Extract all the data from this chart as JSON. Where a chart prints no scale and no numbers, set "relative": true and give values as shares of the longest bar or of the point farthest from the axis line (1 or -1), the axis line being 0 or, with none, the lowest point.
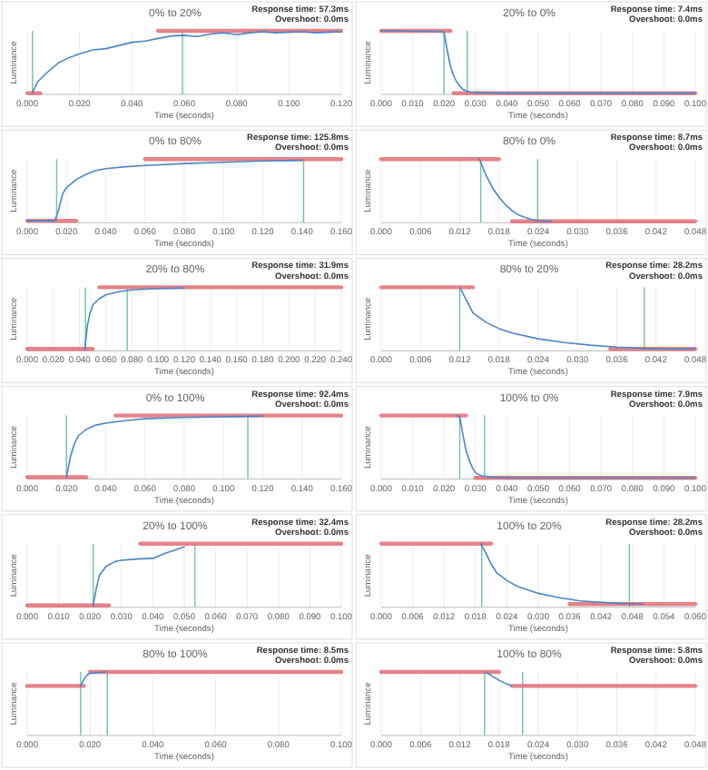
{
  "chart_data": [
    {
      "type": "line",
      "relative": true,
      "grid": "x",
      "title": "0% to 20%",
      "xlabel": "Time (seconds)",
      "ylabel": "Luminance",
      "annotations": [
        "Response time: 57.3ms",
        "Overshoot: 0.0ms"
      ],
      "xlim": [
        0,
        0.12
      ],
      "xticks": [
        {
          "value": 0,
          "label": "0.000"
        },
        {
          "value": 0.02,
          "label": "0.020"
        },
        {
          "value": 0.04,
          "label": "0.040"
        },
        {
          "value": 0.06,
          "label": "0.060"
        },
        {
          "value": 0.08,
          "label": "0.080"
        },
        {
          "value": 0.1,
          "label": "0.100"
        },
        {
          "value": 0.12,
          "label": "0.120"
        }
      ],
      "ref_lines": [
        {
          "axis": "x",
          "value": 0.002,
          "color": "#6cc4a4"
        },
        {
          "axis": "x",
          "value": 0.0593,
          "color": "#6cc4a4"
        }
      ],
      "series": [
        {
          "type": "line",
          "color": "#e06c75",
          "x": [
            0,
            0.005
          ],
          "values": [
            0.02,
            0.02
          ]
        },
        {
          "type": "line",
          "color": "#e06c75",
          "x": [
            0.05,
            0.12
          ],
          "values": [
            1,
            1
          ]
        },
        {
          "type": "line",
          "color": "#4a86c8",
          "x": [
            0.002,
            0.004,
            0.008,
            0.012,
            0.016,
            0.02,
            0.025,
            0.03,
            0.035,
            0.04,
            0.045,
            0.05,
            0.055,
            0.06,
            0.065,
            0.07,
            0.075,
            0.08,
            0.085,
            0.09,
            0.095,
            0.1,
            0.105,
            0.11,
            0.115,
            0.12
          ],
          "values": [
            0.03,
            0.2,
            0.36,
            0.5,
            0.58,
            0.64,
            0.7,
            0.72,
            0.77,
            0.82,
            0.84,
            0.88,
            0.92,
            0.93,
            0.91,
            0.95,
            0.97,
            0.94,
            0.97,
            0.99,
            0.97,
            0.98,
            0.99,
            0.97,
            0.98,
            0.99
          ]
        }
      ]
    },
    {
      "type": "line",
      "relative": true,
      "grid": "x",
      "title": "20% to 0%",
      "xlabel": "Time (seconds)",
      "ylabel": "Luminance",
      "annotations": [
        "Response time: 7.4ms",
        "Overshoot: 0.0ms"
      ],
      "xlim": [
        0,
        0.1
      ],
      "xticks": [
        {
          "value": 0,
          "label": "0.000"
        },
        {
          "value": 0.01,
          "label": "0.010"
        },
        {
          "value": 0.02,
          "label": "0.020"
        },
        {
          "value": 0.03,
          "label": "0.030"
        },
        {
          "value": 0.04,
          "label": "0.040"
        },
        {
          "value": 0.05,
          "label": "0.050"
        },
        {
          "value": 0.06,
          "label": "0.060"
        },
        {
          "value": 0.07,
          "label": "0.070"
        },
        {
          "value": 0.08,
          "label": "0.080"
        },
        {
          "value": 0.09,
          "label": "0.090"
        },
        {
          "value": 0.1,
          "label": "0.100"
        }
      ],
      "ref_lines": [
        {
          "axis": "x",
          "value": 0.02,
          "color": "#6cc4a4"
        },
        {
          "axis": "x",
          "value": 0.0274,
          "color": "#6cc4a4"
        }
      ],
      "series": [
        {
          "type": "line",
          "color": "#e06c75",
          "x": [
            0,
            0.022
          ],
          "values": [
            1,
            1
          ]
        },
        {
          "type": "line",
          "color": "#e06c75",
          "x": [
            0.023,
            0.1
          ],
          "values": [
            0.02,
            0.02
          ]
        },
        {
          "type": "line",
          "color": "#4a86c8",
          "x": [
            0,
            0.019,
            0.02,
            0.021,
            0.022,
            0.023,
            0.024,
            0.025,
            0.026,
            0.028,
            0.03,
            0.04,
            0.06,
            0.08,
            0.1
          ],
          "values": [
            1,
            0.99,
            0.98,
            0.7,
            0.45,
            0.3,
            0.2,
            0.13,
            0.08,
            0.04,
            0.03,
            0.02,
            0.02,
            0.02,
            0.02
          ]
        }
      ]
    },
    {
      "type": "line",
      "relative": true,
      "grid": "x",
      "title": "0% to 80%",
      "xlabel": "Time (seconds)",
      "ylabel": "Luminance",
      "annotations": [
        "Response time: 125.8ms",
        "Overshoot: 0.0ms"
      ],
      "xlim": [
        0,
        0.16
      ],
      "xticks": [
        {
          "value": 0,
          "label": "0.000"
        },
        {
          "value": 0.02,
          "label": "0.020"
        },
        {
          "value": 0.04,
          "label": "0.040"
        },
        {
          "value": 0.06,
          "label": "0.060"
        },
        {
          "value": 0.08,
          "label": "0.080"
        },
        {
          "value": 0.1,
          "label": "0.100"
        },
        {
          "value": 0.12,
          "label": "0.120"
        },
        {
          "value": 0.14,
          "label": "0.140"
        },
        {
          "value": 0.16,
          "label": "0.160"
        }
      ],
      "ref_lines": [
        {
          "axis": "x",
          "value": 0.015,
          "color": "#6cc4a4"
        },
        {
          "axis": "x",
          "value": 0.1408,
          "color": "#6cc4a4"
        }
      ],
      "series": [
        {
          "type": "line",
          "color": "#e06c75",
          "x": [
            0,
            0.025
          ],
          "values": [
            0.03,
            0.03
          ]
        },
        {
          "type": "line",
          "color": "#e06c75",
          "x": [
            0.06,
            0.16
          ],
          "values": [
            1,
            1
          ]
        },
        {
          "type": "line",
          "color": "#4a86c8",
          "x": [
            0,
            0.014,
            0.016,
            0.018,
            0.02,
            0.025,
            0.03,
            0.035,
            0.04,
            0.05,
            0.06,
            0.08,
            0.1,
            0.12,
            0.14
          ],
          "values": [
            0.03,
            0.03,
            0.2,
            0.45,
            0.55,
            0.68,
            0.76,
            0.82,
            0.85,
            0.88,
            0.9,
            0.93,
            0.95,
            0.97,
            0.98
          ]
        }
      ]
    },
    {
      "type": "line",
      "relative": true,
      "grid": "x",
      "title": "80% to 0%",
      "xlabel": "Time (seconds)",
      "ylabel": "Luminance",
      "annotations": [
        "Response time: 8.7ms",
        "Overshoot: 0.0ms"
      ],
      "xlim": [
        0,
        0.048
      ],
      "xticks": [
        {
          "value": 0,
          "label": "0.000"
        },
        {
          "value": 0.006,
          "label": "0.006"
        },
        {
          "value": 0.012,
          "label": "0.012"
        },
        {
          "value": 0.018,
          "label": "0.018"
        },
        {
          "value": 0.024,
          "label": "0.024"
        },
        {
          "value": 0.03,
          "label": "0.030"
        },
        {
          "value": 0.036,
          "label": "0.036"
        },
        {
          "value": 0.042,
          "label": "0.042"
        },
        {
          "value": 0.048,
          "label": "0.048"
        }
      ],
      "ref_lines": [
        {
          "axis": "x",
          "value": 0.0152,
          "color": "#6cc4a4"
        },
        {
          "axis": "x",
          "value": 0.0239,
          "color": "#6cc4a4"
        }
      ],
      "series": [
        {
          "type": "line",
          "color": "#e06c75",
          "x": [
            0,
            0.018
          ],
          "values": [
            1,
            1
          ]
        },
        {
          "type": "line",
          "color": "#e06c75",
          "x": [
            0.02,
            0.048
          ],
          "values": [
            0.02,
            0.02
          ]
        },
        {
          "type": "line",
          "color": "#4a86c8",
          "x": [
            0.015,
            0.016,
            0.017,
            0.018,
            0.019,
            0.02,
            0.021,
            0.022,
            0.023,
            0.024,
            0.026
          ],
          "values": [
            1,
            0.75,
            0.55,
            0.4,
            0.28,
            0.19,
            0.12,
            0.08,
            0.05,
            0.03,
            0.02
          ]
        }
      ]
    },
    {
      "type": "line",
      "relative": true,
      "grid": "x",
      "title": "20% to 80%",
      "xlabel": "Time (seconds)",
      "ylabel": "Luminance",
      "annotations": [
        "Response time: 31.9ms",
        "Overshoot: 0.0ms"
      ],
      "xlim": [
        0,
        0.24
      ],
      "xticks": [
        {
          "value": 0,
          "label": "0.000"
        },
        {
          "value": 0.02,
          "label": "0.020"
        },
        {
          "value": 0.04,
          "label": "0.040"
        },
        {
          "value": 0.06,
          "label": "0.060"
        },
        {
          "value": 0.08,
          "label": "0.080"
        },
        {
          "value": 0.1,
          "label": "0.100"
        },
        {
          "value": 0.12,
          "label": "0.120"
        },
        {
          "value": 0.14,
          "label": "0.140"
        },
        {
          "value": 0.16,
          "label": "0.160"
        },
        {
          "value": 0.18,
          "label": "0.180"
        },
        {
          "value": 0.2,
          "label": "0.200"
        },
        {
          "value": 0.22,
          "label": "0.220"
        },
        {
          "value": 0.24,
          "label": "0.240"
        }
      ],
      "ref_lines": [
        {
          "axis": "x",
          "value": 0.0445,
          "color": "#6cc4a4"
        },
        {
          "axis": "x",
          "value": 0.0764,
          "color": "#6cc4a4"
        }
      ],
      "series": [
        {
          "type": "line",
          "color": "#e06c75",
          "x": [
            0,
            0.05
          ],
          "values": [
            0.03,
            0.03
          ]
        },
        {
          "type": "line",
          "color": "#e06c75",
          "x": [
            0.055,
            0.24
          ],
          "values": [
            1,
            1
          ]
        },
        {
          "type": "line",
          "color": "#4a86c8",
          "x": [
            0.044,
            0.046,
            0.048,
            0.05,
            0.055,
            0.06,
            0.07,
            0.08,
            0.1,
            0.12
          ],
          "values": [
            0.03,
            0.4,
            0.6,
            0.72,
            0.82,
            0.88,
            0.93,
            0.96,
            0.98,
            0.99
          ]
        }
      ]
    },
    {
      "type": "line",
      "relative": true,
      "grid": "x",
      "title": "80% to 20%",
      "xlabel": "Time (seconds)",
      "ylabel": "Luminance",
      "annotations": [
        "Response time: 28.2ms",
        "Overshoot: 0.0ms"
      ],
      "xlim": [
        0,
        0.048
      ],
      "xticks": [
        {
          "value": 0,
          "label": "0.000"
        },
        {
          "value": 0.006,
          "label": "0.006"
        },
        {
          "value": 0.012,
          "label": "0.012"
        },
        {
          "value": 0.018,
          "label": "0.018"
        },
        {
          "value": 0.024,
          "label": "0.024"
        },
        {
          "value": 0.03,
          "label": "0.030"
        },
        {
          "value": 0.036,
          "label": "0.036"
        },
        {
          "value": 0.042,
          "label": "0.042"
        },
        {
          "value": 0.048,
          "label": "0.048"
        }
      ],
      "ref_lines": [
        {
          "axis": "x",
          "value": 0.012,
          "color": "#6cc4a4"
        },
        {
          "axis": "x",
          "value": 0.0402,
          "color": "#6cc4a4"
        }
      ],
      "series": [
        {
          "type": "line",
          "color": "#e06c75",
          "x": [
            0,
            0.014
          ],
          "values": [
            1,
            1
          ]
        },
        {
          "type": "line",
          "color": "#e06c75",
          "x": [
            0.035,
            0.048
          ],
          "values": [
            0.03,
            0.03
          ]
        },
        {
          "type": "line",
          "color": "#4a86c8",
          "x": [
            0.012,
            0.013,
            0.014,
            0.016,
            0.018,
            0.02,
            0.024,
            0.028,
            0.032,
            0.036,
            0.04,
            0.044,
            0.048
          ],
          "values": [
            1,
            0.8,
            0.6,
            0.45,
            0.35,
            0.28,
            0.19,
            0.13,
            0.09,
            0.06,
            0.04,
            0.03,
            0.03
          ]
        }
      ]
    },
    {
      "type": "line",
      "relative": true,
      "grid": "x",
      "title": "0% to 100%",
      "xlabel": "Time (seconds)",
      "ylabel": "Luminance",
      "annotations": [
        "Response time: 92.4ms",
        "Overshoot: 0.0ms"
      ],
      "xlim": [
        0,
        0.16
      ],
      "xticks": [
        {
          "value": 0,
          "label": "0.000"
        },
        {
          "value": 0.02,
          "label": "0.020"
        },
        {
          "value": 0.04,
          "label": "0.040"
        },
        {
          "value": 0.06,
          "label": "0.060"
        },
        {
          "value": 0.08,
          "label": "0.080"
        },
        {
          "value": 0.1,
          "label": "0.100"
        },
        {
          "value": 0.12,
          "label": "0.120"
        },
        {
          "value": 0.14,
          "label": "0.140"
        },
        {
          "value": 0.16,
          "label": "0.160"
        }
      ],
      "ref_lines": [
        {
          "axis": "x",
          "value": 0.02,
          "color": "#6cc4a4"
        },
        {
          "axis": "x",
          "value": 0.1124,
          "color": "#6cc4a4"
        }
      ],
      "series": [
        {
          "type": "line",
          "color": "#e06c75",
          "x": [
            0,
            0.03
          ],
          "values": [
            0.03,
            0.03
          ]
        },
        {
          "type": "line",
          "color": "#e06c75",
          "x": [
            0.045,
            0.16
          ],
          "values": [
            1,
            1
          ]
        },
        {
          "type": "line",
          "color": "#4a86c8",
          "x": [
            0.02,
            0.022,
            0.024,
            0.026,
            0.03,
            0.035,
            0.04,
            0.05,
            0.06,
            0.08,
            0.1,
            0.12
          ],
          "values": [
            0.03,
            0.35,
            0.55,
            0.68,
            0.78,
            0.85,
            0.88,
            0.92,
            0.95,
            0.97,
            0.98,
            0.99
          ]
        }
      ]
    },
    {
      "type": "line",
      "relative": true,
      "grid": "x",
      "title": "100% to 0%",
      "xlabel": "Time (seconds)",
      "ylabel": "Luminance",
      "annotations": [
        "Response time: 7.9ms",
        "Overshoot: 0.0ms"
      ],
      "xlim": [
        0,
        0.1
      ],
      "xticks": [
        {
          "value": 0,
          "label": "0.000"
        },
        {
          "value": 0.01,
          "label": "0.010"
        },
        {
          "value": 0.02,
          "label": "0.020"
        },
        {
          "value": 0.03,
          "label": "0.030"
        },
        {
          "value": 0.04,
          "label": "0.040"
        },
        {
          "value": 0.05,
          "label": "0.050"
        },
        {
          "value": 0.06,
          "label": "0.060"
        },
        {
          "value": 0.07,
          "label": "0.070"
        },
        {
          "value": 0.08,
          "label": "0.080"
        },
        {
          "value": 0.09,
          "label": "0.090"
        },
        {
          "value": 0.1,
          "label": "0.100"
        }
      ],
      "ref_lines": [
        {
          "axis": "x",
          "value": 0.025,
          "color": "#6cc4a4"
        },
        {
          "axis": "x",
          "value": 0.0329,
          "color": "#6cc4a4"
        }
      ],
      "series": [
        {
          "type": "line",
          "color": "#e06c75",
          "x": [
            0,
            0.027
          ],
          "values": [
            1,
            1
          ]
        },
        {
          "type": "line",
          "color": "#e06c75",
          "x": [
            0.03,
            0.1
          ],
          "values": [
            0.02,
            0.02
          ]
        },
        {
          "type": "line",
          "color": "#4a86c8",
          "x": [
            0.024,
            0.025,
            0.026,
            0.027,
            0.028,
            0.029,
            0.03,
            0.032,
            0.035,
            0.04,
            0.06,
            0.08,
            0.1
          ],
          "values": [
            1,
            0.98,
            0.7,
            0.45,
            0.3,
            0.18,
            0.1,
            0.05,
            0.03,
            0.02,
            0.02,
            0.02,
            0.02
          ]
        }
      ]
    },
    {
      "type": "line",
      "relative": true,
      "grid": "x",
      "title": "20% to 100%",
      "xlabel": "Time (seconds)",
      "ylabel": "Luminance",
      "annotations": [
        "Response time: 32.4ms",
        "Overshoot: 0.0ms"
      ],
      "xlim": [
        0,
        0.1
      ],
      "xticks": [
        {
          "value": 0,
          "label": "0.000"
        },
        {
          "value": 0.01,
          "label": "0.010"
        },
        {
          "value": 0.02,
          "label": "0.020"
        },
        {
          "value": 0.03,
          "label": "0.030"
        },
        {
          "value": 0.04,
          "label": "0.040"
        },
        {
          "value": 0.05,
          "label": "0.050"
        },
        {
          "value": 0.06,
          "label": "0.060"
        },
        {
          "value": 0.07,
          "label": "0.070"
        },
        {
          "value": 0.08,
          "label": "0.080"
        },
        {
          "value": 0.09,
          "label": "0.090"
        },
        {
          "value": 0.1,
          "label": "0.100"
        }
      ],
      "ref_lines": [
        {
          "axis": "x",
          "value": 0.021,
          "color": "#6cc4a4"
        },
        {
          "axis": "x",
          "value": 0.0534,
          "color": "#6cc4a4"
        }
      ],
      "series": [
        {
          "type": "line",
          "color": "#e06c75",
          "x": [
            0,
            0.026
          ],
          "values": [
            0.03,
            0.03
          ]
        },
        {
          "type": "line",
          "color": "#e06c75",
          "x": [
            0.036,
            0.1
          ],
          "values": [
            1,
            1
          ]
        },
        {
          "type": "line",
          "color": "#4a86c8",
          "x": [
            0.021,
            0.022,
            0.023,
            0.025,
            0.028,
            0.03,
            0.035,
            0.04,
            0.044,
            0.05
          ],
          "values": [
            0.03,
            0.3,
            0.5,
            0.64,
            0.72,
            0.74,
            0.76,
            0.77,
            0.85,
            0.95
          ]
        }
      ]
    },
    {
      "type": "line",
      "relative": true,
      "grid": "x",
      "title": "100% to 20%",
      "xlabel": "Time (seconds)",
      "ylabel": "Luminance",
      "annotations": [
        "Response time: 28.2ms",
        "Overshoot: 0.0ms"
      ],
      "xlim": [
        0,
        0.06
      ],
      "xticks": [
        {
          "value": 0,
          "label": "0.000"
        },
        {
          "value": 0.006,
          "label": "0.006"
        },
        {
          "value": 0.012,
          "label": "0.012"
        },
        {
          "value": 0.018,
          "label": "0.018"
        },
        {
          "value": 0.024,
          "label": "0.024"
        },
        {
          "value": 0.03,
          "label": "0.030"
        },
        {
          "value": 0.036,
          "label": "0.036"
        },
        {
          "value": 0.042,
          "label": "0.042"
        },
        {
          "value": 0.048,
          "label": "0.048"
        },
        {
          "value": 0.054,
          "label": "0.054"
        },
        {
          "value": 0.06,
          "label": "0.060"
        }
      ],
      "ref_lines": [
        {
          "axis": "x",
          "value": 0.0192,
          "color": "#6cc4a4"
        },
        {
          "axis": "x",
          "value": 0.0474,
          "color": "#6cc4a4"
        }
      ],
      "series": [
        {
          "type": "line",
          "color": "#e06c75",
          "x": [
            0,
            0.021
          ],
          "values": [
            1,
            1
          ]
        },
        {
          "type": "line",
          "color": "#e06c75",
          "x": [
            0.036,
            0.06
          ],
          "values": [
            0.05,
            0.05
          ]
        },
        {
          "type": "line",
          "color": "#4a86c8",
          "x": [
            0.019,
            0.02,
            0.021,
            0.022,
            0.024,
            0.026,
            0.03,
            0.034,
            0.038,
            0.042,
            0.046,
            0.05
          ],
          "values": [
            1,
            0.85,
            0.68,
            0.55,
            0.42,
            0.33,
            0.22,
            0.15,
            0.1,
            0.08,
            0.06,
            0.05
          ]
        }
      ]
    },
    {
      "type": "line",
      "relative": true,
      "grid": "x",
      "title": "80% to 100%",
      "xlabel": "Time (seconds)",
      "ylabel": "Luminance",
      "annotations": [
        "Response time: 8.5ms",
        "Overshoot: 0.0ms"
      ],
      "xlim": [
        0,
        0.1
      ],
      "xticks": [
        {
          "value": 0,
          "label": "0.000"
        },
        {
          "value": 0.02,
          "label": "0.020"
        },
        {
          "value": 0.04,
          "label": "0.040"
        },
        {
          "value": 0.06,
          "label": "0.060"
        },
        {
          "value": 0.08,
          "label": "0.080"
        },
        {
          "value": 0.1,
          "label": "0.100"
        }
      ],
      "ref_lines": [
        {
          "axis": "x",
          "value": 0.017,
          "color": "#6cc4a4"
        },
        {
          "axis": "x",
          "value": 0.0255,
          "color": "#6cc4a4"
        }
      ],
      "series": [
        {
          "type": "line",
          "color": "#e06c75",
          "x": [
            0,
            0.018
          ],
          "values": [
            0.78,
            0.78
          ]
        },
        {
          "type": "line",
          "color": "#e06c75",
          "x": [
            0.02,
            0.1
          ],
          "values": [
            1,
            1
          ]
        },
        {
          "type": "line",
          "color": "#4a86c8",
          "x": [
            0.017,
            0.018,
            0.019,
            0.02,
            0.022,
            0.025
          ],
          "values": [
            0.78,
            0.88,
            0.95,
            0.98,
            0.99,
            1
          ]
        }
      ]
    },
    {
      "type": "line",
      "relative": true,
      "grid": "x",
      "title": "100% to 80%",
      "xlabel": "Time (seconds)",
      "ylabel": "Luminance",
      "annotations": [
        "Response time: 5.8ms",
        "Overshoot: 0.0ms"
      ],
      "xlim": [
        0,
        0.048
      ],
      "xticks": [
        {
          "value": 0,
          "label": "0.000"
        },
        {
          "value": 0.006,
          "label": "0.006"
        },
        {
          "value": 0.012,
          "label": "0.012"
        },
        {
          "value": 0.018,
          "label": "0.018"
        },
        {
          "value": 0.024,
          "label": "0.024"
        },
        {
          "value": 0.03,
          "label": "0.030"
        },
        {
          "value": 0.036,
          "label": "0.036"
        },
        {
          "value": 0.042,
          "label": "0.042"
        },
        {
          "value": 0.048,
          "label": "0.048"
        }
      ],
      "ref_lines": [
        {
          "axis": "x",
          "value": 0.0158,
          "color": "#6cc4a4"
        },
        {
          "axis": "x",
          "value": 0.0216,
          "color": "#6cc4a4"
        }
      ],
      "series": [
        {
          "type": "line",
          "color": "#e06c75",
          "x": [
            0,
            0.018
          ],
          "values": [
            1,
            1
          ]
        },
        {
          "type": "line",
          "color": "#e06c75",
          "x": [
            0.02,
            0.048
          ],
          "values": [
            0.78,
            0.78
          ]
        },
        {
          "type": "line",
          "color": "#4a86c8",
          "x": [
            0.016,
            0.017,
            0.018,
            0.019,
            0.02
          ],
          "values": [
            1,
            0.93,
            0.87,
            0.82,
            0.78
          ]
        }
      ]
    }
  ]
}
